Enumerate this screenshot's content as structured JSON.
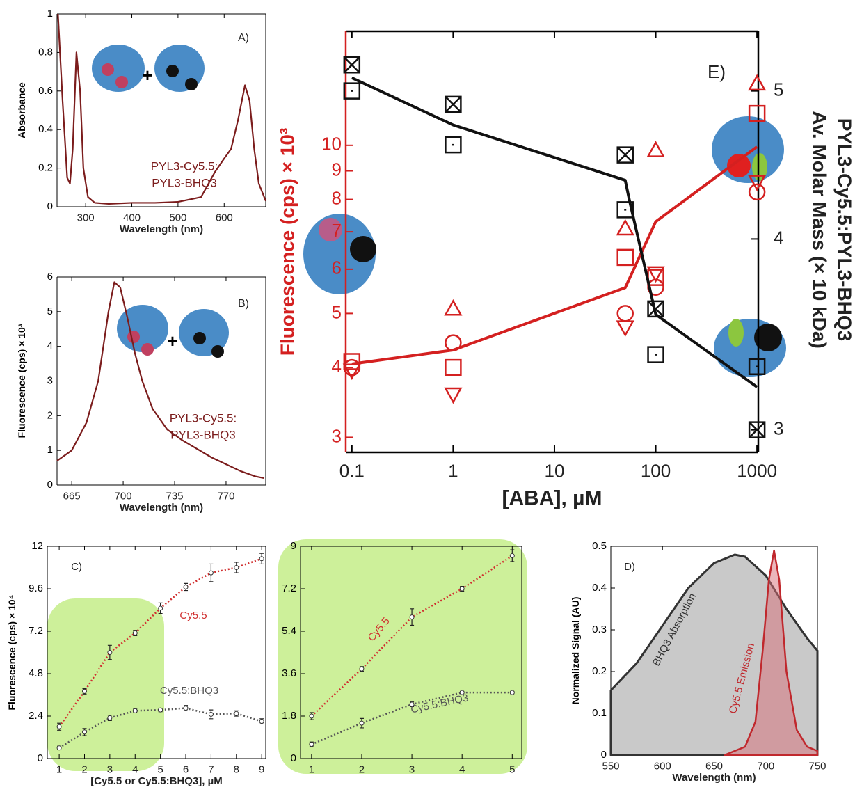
{
  "chart_data": [
    {
      "type": "line",
      "annotations": [
        "A)",
        "PYL3-Cy5.5:",
        "PYL3-BHQ3"
      ],
      "annotation_color": "#7b1c1c",
      "xlabel": "Wavelength (nm)",
      "ylabel": "Absorbance",
      "xlim": [
        238,
        690
      ],
      "xticks": [
        300,
        400,
        500,
        600
      ],
      "ylim": [
        0,
        1
      ],
      "yticks": [
        0,
        0.2,
        0.4,
        0.6,
        0.8,
        1
      ],
      "series": [
        {
          "color": "#7b1c1c",
          "x": [
            240,
            250,
            260,
            266,
            272,
            280,
            288,
            295,
            305,
            320,
            350,
            400,
            450,
            500,
            550,
            580,
            600,
            615,
            630,
            645,
            655,
            665,
            675,
            690
          ],
          "values": [
            1.0,
            0.55,
            0.15,
            0.12,
            0.3,
            0.8,
            0.6,
            0.2,
            0.05,
            0.02,
            0.015,
            0.02,
            0.02,
            0.025,
            0.05,
            0.18,
            0.25,
            0.3,
            0.45,
            0.63,
            0.55,
            0.3,
            0.12,
            0.03
          ]
        }
      ]
    },
    {
      "type": "line",
      "annotations": [
        "B)",
        "PYL3-Cy5.5:",
        "PYL3-BHQ3"
      ],
      "annotation_color": "#7b1c1c",
      "xlabel": "Wavelength (nm)",
      "ylabel": "Fluorescence (cps) × 10³",
      "xlim": [
        655,
        797
      ],
      "xticks": [
        665,
        700,
        735,
        770
      ],
      "ylim": [
        0,
        6
      ],
      "yticks": [
        0,
        1,
        2,
        3,
        4,
        5,
        6
      ],
      "series": [
        {
          "color": "#7b1c1c",
          "x": [
            655,
            665,
            675,
            683,
            690,
            694,
            698,
            703,
            708,
            713,
            720,
            730,
            740,
            750,
            760,
            770,
            780,
            790,
            796
          ],
          "values": [
            0.7,
            1.0,
            1.8,
            3.0,
            5.0,
            5.85,
            5.7,
            4.8,
            3.8,
            3.0,
            2.2,
            1.6,
            1.3,
            1.05,
            0.8,
            0.6,
            0.4,
            0.25,
            0.2
          ]
        }
      ]
    },
    {
      "type": "line",
      "annotations": [
        "E)"
      ],
      "xlabel": "[ABA], µM",
      "ylabel": "Fluorescence (cps) × 10³",
      "y2label": [
        "PYL3-Cy5.5:PYL3-BHQ3",
        "Av. Molar Mass (× 10 kDa)"
      ],
      "xscale": "log",
      "yscale": "log",
      "y2scale": "log",
      "ycolor": "#d42020",
      "xlim": [
        0.087,
        1030
      ],
      "xticks": [
        0.1,
        1,
        10,
        100,
        1000
      ],
      "ylim": [
        2.82,
        16
      ],
      "yticks": [
        3,
        4,
        5,
        6,
        7,
        8,
        9,
        10
      ],
      "y2lim": [
        2.9,
        5.47
      ],
      "y2ticks": [
        3,
        4,
        5
      ],
      "x": [
        0.1,
        1,
        50,
        100,
        1000
      ],
      "series": [
        {
          "color": "#d42020",
          "values": [
            4.06,
            4.3,
            5.56,
            7.3,
            9.94
          ]
        },
        {
          "color": "#d42020",
          "marker": "square",
          "line": false,
          "values": [
            4.1,
            4.0,
            6.3,
            5.8,
            11.4
          ]
        },
        {
          "color": "#d42020",
          "marker": "triangle",
          "line": false,
          "values": [
            null,
            5.1,
            7.1,
            9.8,
            12.9
          ]
        },
        {
          "color": "#d42020",
          "marker": "circle",
          "line": false,
          "values": [
            4.0,
            4.43,
            5.0,
            5.57,
            8.25
          ]
        },
        {
          "color": "#d42020",
          "marker": "triangle-down",
          "line": false,
          "values": [
            3.95,
            3.58,
            4.72,
            5.9,
            8.6
          ]
        },
        {
          "color": "#111111",
          "axis": "y2",
          "x": [
            0.1,
            1,
            50,
            55,
            100,
            1000
          ],
          "values": [
            5.1,
            4.75,
            4.37,
            4.24,
            3.57,
            3.2
          ]
        },
        {
          "color": "#111111",
          "axis": "y2",
          "marker": "crossed-square",
          "line": false,
          "values": [
            5.2,
            4.9,
            4.54,
            3.6,
            3.0
          ]
        },
        {
          "color": "#111111",
          "axis": "y2",
          "marker": "dotted-square",
          "line": false,
          "values": [
            5.0,
            4.61,
            4.18,
            3.36,
            3.3
          ]
        }
      ]
    },
    {
      "type": "line",
      "annotations": [
        "C)"
      ],
      "xlabel": "[Cy5.5 or Cy5.5:BHQ3], µM",
      "ylabel": "Fluorescence (cps) × 10⁴",
      "xlim": [
        0.53,
        9.16
      ],
      "xticks": [
        1,
        2,
        3,
        4,
        5,
        6,
        7,
        8,
        9
      ],
      "ylim": [
        0,
        12
      ],
      "yticks": [
        0,
        2.4,
        4.8,
        7.2,
        9.6,
        12
      ],
      "x": [
        1,
        2,
        3,
        4,
        5,
        6,
        7,
        8,
        9
      ],
      "series": [
        {
          "name": "Cy5.5",
          "color": "#d03030",
          "dash": true,
          "marker": "circle",
          "values": [
            1.8,
            3.8,
            6.0,
            7.1,
            8.5,
            9.7,
            10.5,
            10.8,
            11.3
          ],
          "errors": [
            0.2,
            0.15,
            0.4,
            0.15,
            0.3,
            0.2,
            0.5,
            0.3,
            0.3
          ]
        },
        {
          "name": "Cy5.5:BHQ3",
          "color": "#555555",
          "dash": true,
          "marker": "circle",
          "values": [
            0.6,
            1.5,
            2.3,
            2.7,
            2.75,
            2.85,
            2.5,
            2.55,
            2.1
          ],
          "errors": [
            0.1,
            0.2,
            0.15,
            0.1,
            0.1,
            0.15,
            0.25,
            0.15,
            0.15
          ]
        }
      ]
    },
    {
      "type": "line",
      "xlim": [
        0.78,
        5.19
      ],
      "xticks": [
        1,
        2,
        3,
        4,
        5
      ],
      "ylim": [
        0,
        9
      ],
      "yticks": [
        0,
        1.8,
        3.6,
        5.4,
        7.2,
        9
      ],
      "x": [
        1,
        2,
        3,
        4,
        5
      ],
      "series": [
        {
          "name": "Cy5.5",
          "color": "#d03030",
          "dash": true,
          "marker": "circle",
          "values": [
            1.8,
            3.8,
            6.0,
            7.2,
            8.6
          ],
          "errors": [
            0.15,
            0.1,
            0.35,
            0.1,
            0.25
          ]
        },
        {
          "name": "Cy5.5:BHQ3",
          "color": "#555555",
          "dash": true,
          "marker": "circle",
          "values": [
            0.6,
            1.5,
            2.3,
            2.8,
            2.8
          ],
          "errors": [
            0.1,
            0.2,
            0.1,
            0.05,
            0.05
          ]
        }
      ]
    },
    {
      "type": "area",
      "annotations": [
        "D)"
      ],
      "xlabel": "Wavelength (nm)",
      "ylabel": "Normalized Signal (AU)",
      "xlim": [
        550,
        750
      ],
      "xticks": [
        550,
        600,
        650,
        700,
        750
      ],
      "ylim": [
        0,
        0.5
      ],
      "yticks": [
        0,
        0.1,
        0.2,
        0.3,
        0.4,
        0.5
      ],
      "series": [
        {
          "name": "BHQ3 Absorption",
          "color": "#333333",
          "fill": "#c9c9c9",
          "x": [
            550,
            575,
            600,
            625,
            650,
            670,
            680,
            700,
            720,
            740,
            750
          ],
          "values": [
            0.155,
            0.22,
            0.31,
            0.4,
            0.46,
            0.48,
            0.475,
            0.43,
            0.35,
            0.28,
            0.25
          ]
        },
        {
          "name": "Cy5.5 Emission",
          "color": "#c0282d",
          "fill": "rgba(215,110,120,0.5)",
          "x": [
            660,
            680,
            690,
            697,
            703,
            708,
            713,
            720,
            730,
            740,
            750
          ],
          "values": [
            0,
            0.02,
            0.08,
            0.25,
            0.42,
            0.49,
            0.42,
            0.2,
            0.06,
            0.02,
            0.01
          ]
        }
      ]
    }
  ]
}
